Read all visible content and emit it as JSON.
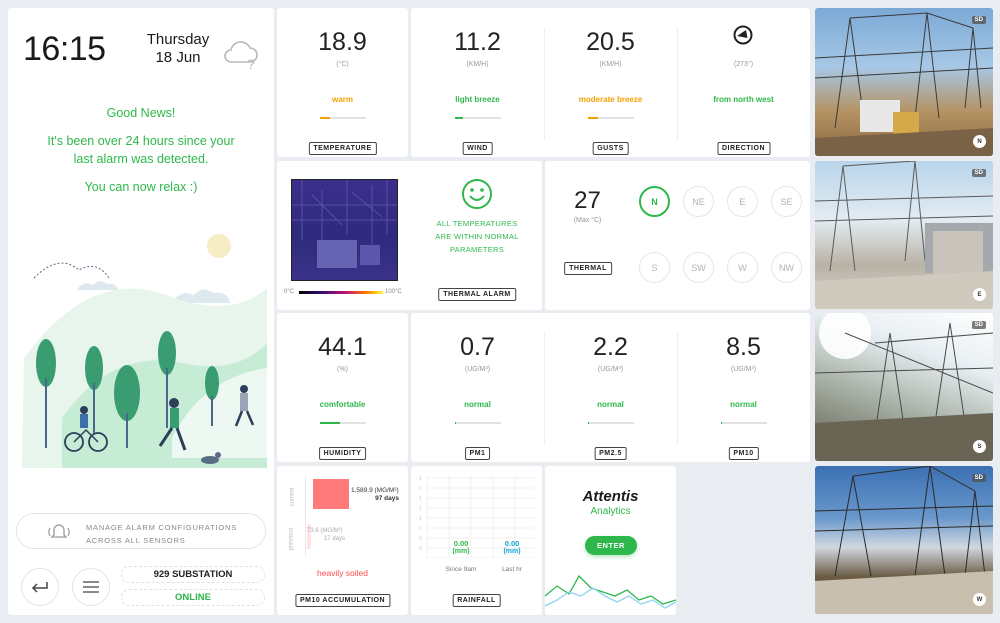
{
  "clock": {
    "time": "16:15",
    "day": "Thursday",
    "date": "18 Jun"
  },
  "notice": {
    "headline": "Good News!",
    "line1": "It's been over 24 hours since your",
    "line2": "last alarm was detected.",
    "line3": "You can now relax :)"
  },
  "alarm_config": {
    "line1": "MANAGE ALARM CONFIGURATIONS",
    "line2": "ACROSS ALL SENSORS"
  },
  "site": {
    "name": "929 SUBSTATION",
    "status": "ONLINE"
  },
  "colors": {
    "green": "#2eb84b",
    "orange": "#f5a200",
    "red": "#ff7b7b",
    "cyan": "#12a5d6"
  },
  "weather": [
    {
      "value": "18.9",
      "unit": "(°C)",
      "status": "warm",
      "level": 0.22,
      "color": "#f5a200",
      "tag": "TEMPERATURE"
    },
    {
      "value": "11.2",
      "unit": "(KM/H)",
      "status": "light breeze",
      "level": 0.18,
      "color": "#2eb84b",
      "tag": "WIND"
    },
    {
      "value": "20.5",
      "unit": "(KM/H)",
      "status": "moderate breeze",
      "level": 0.22,
      "color": "#f5a200",
      "tag": "GUSTS"
    },
    {
      "unit": "(273°)",
      "status": "from north west",
      "color": "#2eb84b",
      "tag": "DIRECTION",
      "icon": "wind-direction-icon"
    }
  ],
  "thermal": {
    "scale_min": "0°C",
    "scale_max": "100°C",
    "message1": "ALL TEMPERATURES",
    "message2": "ARE WITHIN NORMAL",
    "message3": "PARAMETERS",
    "alarm_tag": "THERMAL ALARM",
    "max_value": "27",
    "max_unit": "(Max °C)",
    "tag": "THERMAL",
    "directions": [
      "N",
      "NE",
      "E",
      "SE",
      "S",
      "SW",
      "W",
      "NW"
    ],
    "active_direction": "N"
  },
  "air": [
    {
      "value": "44.1",
      "unit": "(%)",
      "status": "comfortable",
      "level": 0.45,
      "tag": "HUMIDITY"
    },
    {
      "value": "0.7",
      "unit": "(UG/M³)",
      "status": "normal",
      "level": 0.04,
      "tag": "PM1"
    },
    {
      "value": "2.2",
      "unit": "(UG/M³)",
      "status": "normal",
      "level": 0.04,
      "tag": "PM2.5"
    },
    {
      "value": "8.5",
      "unit": "(UG/M³)",
      "status": "normal",
      "level": 0.04,
      "tag": "PM10"
    }
  ],
  "pm10_acc": {
    "current_label": "current",
    "current_value": "1,589.9 (MG/M²)",
    "current_days": "97 days",
    "previous_label": "previous",
    "previous_value": "73.6 (MG/M²)",
    "previous_days": "17 days",
    "status": "heavily soiled",
    "tag": "PM10 ACCUMULATION",
    "current_level": 0.95,
    "previous_level": 0.05
  },
  "rainfall": {
    "since_value": "0.00",
    "since_unit": "(mm)",
    "since_label": "Since 9am",
    "last_value": "0.00",
    "last_unit": "(mm)",
    "last_label": "Last hr",
    "tag": "RAINFALL"
  },
  "attentis": {
    "brand": "Attentis",
    "subtitle": "Analytics",
    "enter_label": "ENTER"
  },
  "cameras": [
    {
      "sd": "SD",
      "label": "N"
    },
    {
      "sd": "SD",
      "label": "E"
    },
    {
      "sd": "SD",
      "label": "S"
    },
    {
      "sd": "SD",
      "label": "W"
    }
  ]
}
